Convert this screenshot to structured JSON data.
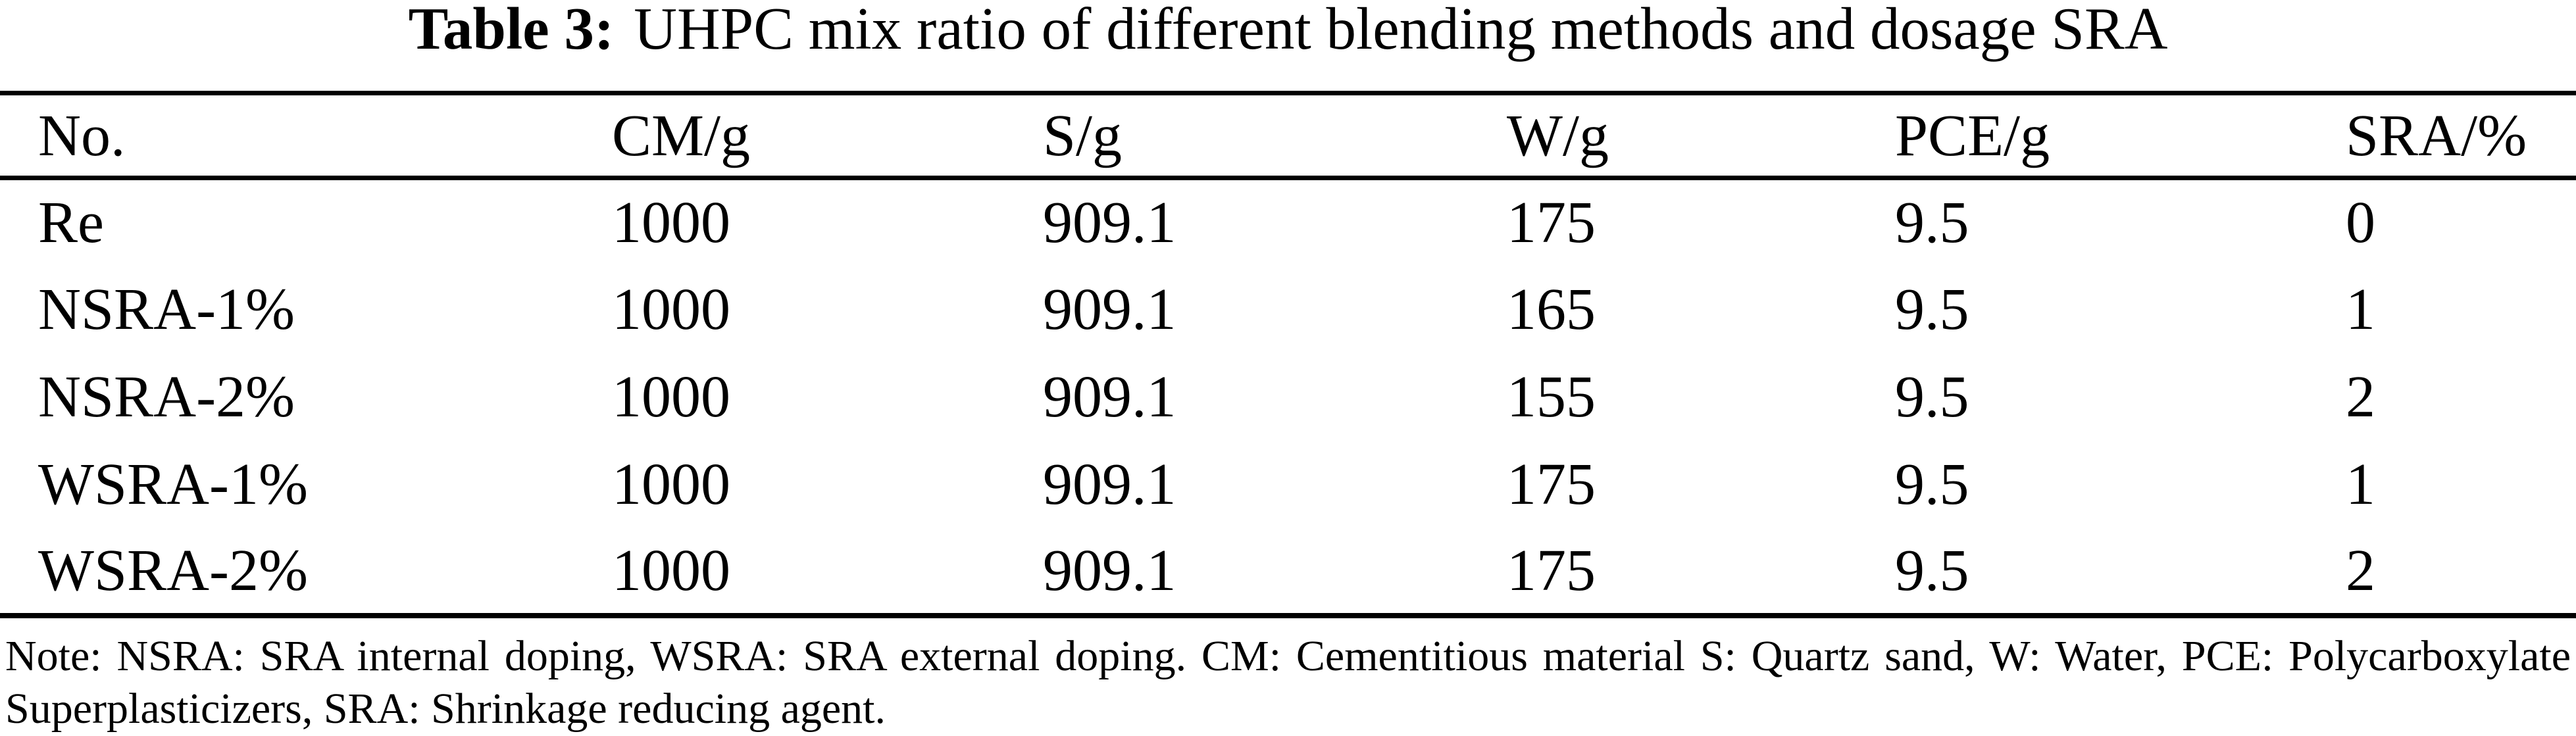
{
  "caption": {
    "label": "Table 3:",
    "text": "UHPC mix ratio of different blending methods and dosage SRA"
  },
  "table": {
    "columns": [
      "No.",
      "CM/g",
      "S/g",
      "W/g",
      "PCE/g",
      "SRA/%"
    ],
    "rows": [
      [
        "Re",
        "1000",
        "909.1",
        "175",
        "9.5",
        "0"
      ],
      [
        "NSRA-1%",
        "1000",
        "909.1",
        "165",
        "9.5",
        "1"
      ],
      [
        "NSRA-2%",
        "1000",
        "909.1",
        "155",
        "9.5",
        "2"
      ],
      [
        "WSRA-1%",
        "1000",
        "909.1",
        "175",
        "9.5",
        "1"
      ],
      [
        "WSRA-2%",
        "1000",
        "909.1",
        "175",
        "9.5",
        "2"
      ]
    ]
  },
  "note": {
    "line1": "Note: NSRA: SRA internal doping, WSRA: SRA external doping. CM: Cementitious material S: Quartz sand, W: Water, PCE: Polycarboxylate",
    "line2": "Superplasticizers, SRA: Shrinkage reducing agent."
  },
  "colors": {
    "text": "#000000",
    "background": "#ffffff",
    "rule": "#000000"
  }
}
